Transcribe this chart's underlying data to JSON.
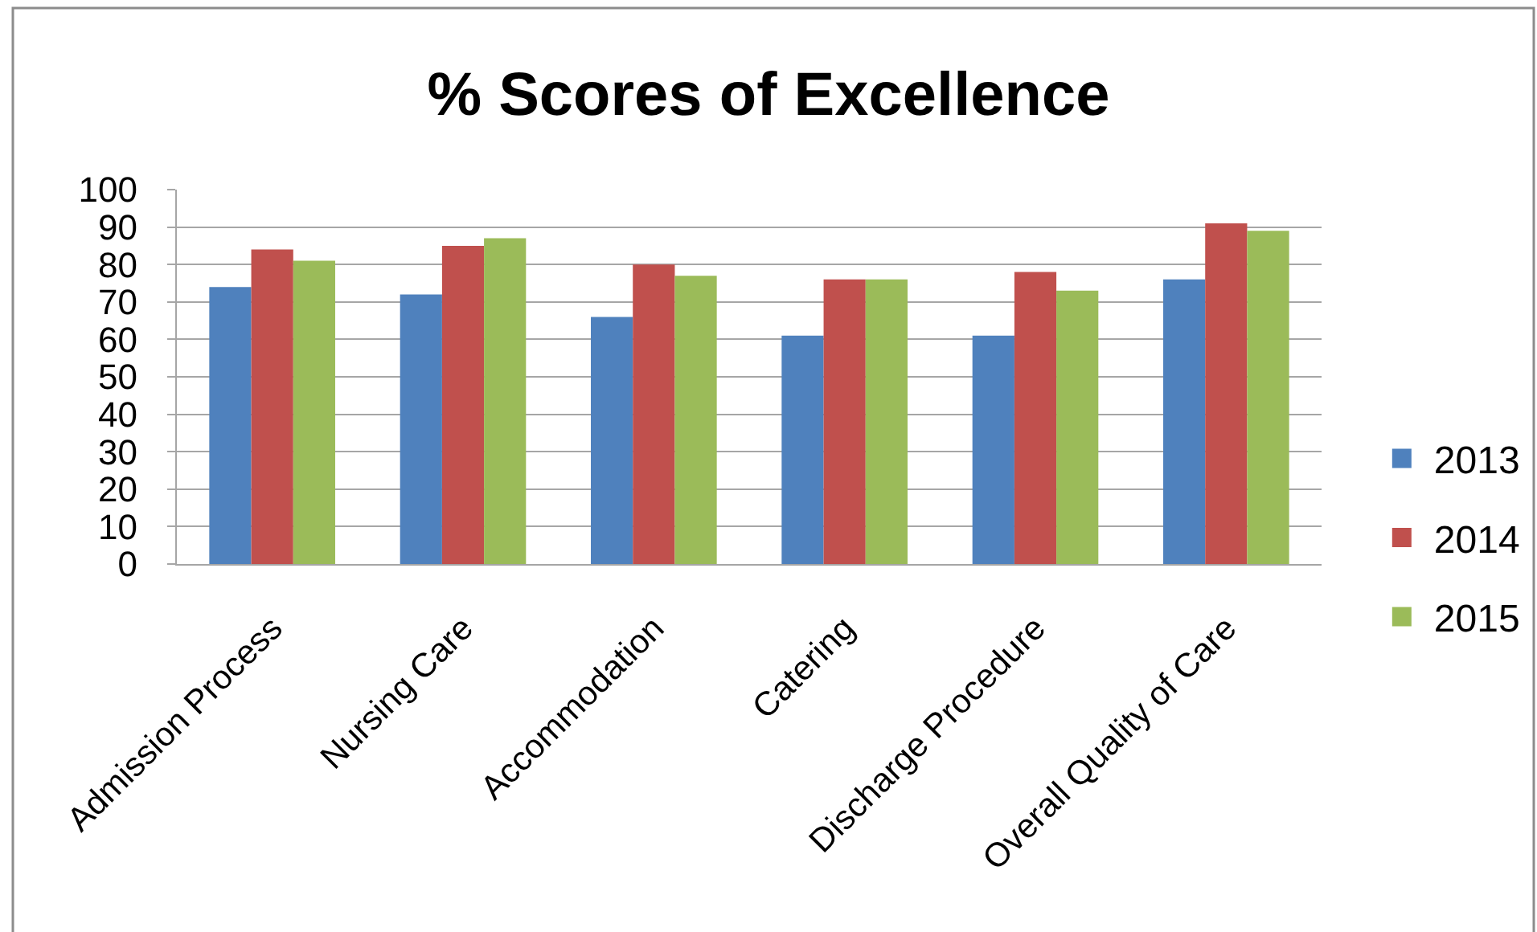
{
  "chart_data": {
    "type": "bar",
    "title": "% Scores of Excellence",
    "categories": [
      "Admission Process",
      "Nursing Care",
      "Accommodation",
      "Catering",
      "Discharge Procedure",
      "Overall Quality of Care"
    ],
    "series": [
      {
        "name": "2013",
        "color": "#4f81bd",
        "values": [
          74,
          72,
          66,
          61,
          61,
          76
        ]
      },
      {
        "name": "2014",
        "color": "#c0504d",
        "values": [
          84,
          85,
          80,
          76,
          78,
          91
        ]
      },
      {
        "name": "2015",
        "color": "#9bbb59",
        "values": [
          81,
          87,
          77,
          76,
          73,
          89
        ]
      }
    ],
    "ylim": [
      0,
      100
    ],
    "yticks": [
      0,
      10,
      20,
      30,
      40,
      50,
      60,
      70,
      80,
      90,
      100
    ],
    "grid": "y",
    "legend": "right"
  }
}
